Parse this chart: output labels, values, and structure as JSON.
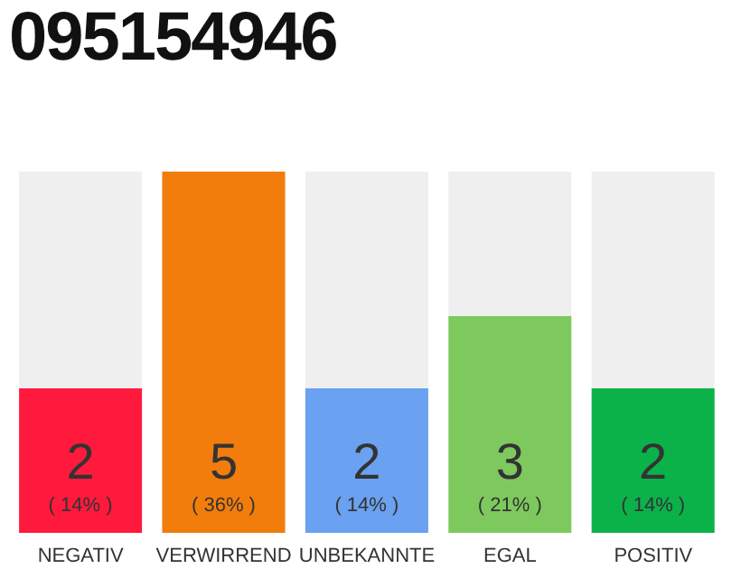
{
  "chart_data": {
    "type": "bar",
    "title": "095154946",
    "categories": [
      "NEGATIV",
      "VERWIRREND",
      "UNBEKANNTE",
      "EGAL",
      "POSITIV"
    ],
    "values": [
      2,
      5,
      2,
      3,
      2
    ],
    "colors": [
      "#ff1a3d",
      "#f27d0c",
      "#6aa1f0",
      "#7dc95e",
      "#0bb24a"
    ],
    "annotations": [
      "( 14% )",
      "( 36% )",
      "( 14% )",
      "( 21% )",
      "( 14% )"
    ],
    "data_labels": true
  }
}
